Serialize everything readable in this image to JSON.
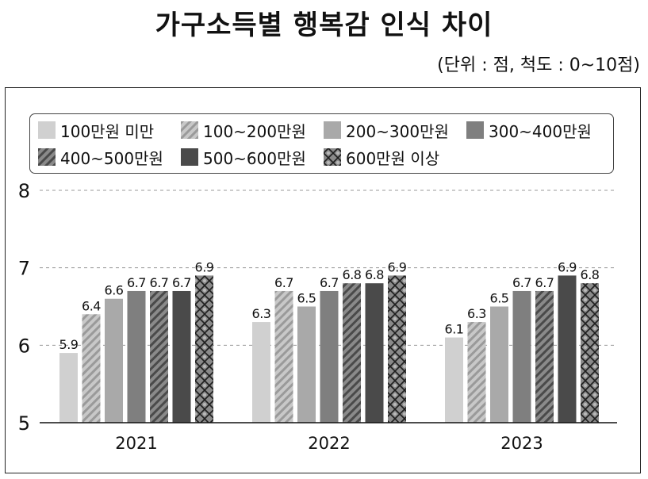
{
  "title": "가구소득별 행복감 인식 차이",
  "unit_note": "(단위 : 점, 척도 : 0~10점)",
  "chart_data": {
    "type": "bar",
    "categories": [
      "2021",
      "2022",
      "2023"
    ],
    "ylim": [
      5,
      8
    ],
    "yticks": [
      "5",
      "6",
      "7",
      "8"
    ],
    "grid": "horizontal dashed",
    "legend_position": "top",
    "series": [
      {
        "name": "100만원 미만",
        "values": [
          5.9,
          6.3,
          6.1
        ],
        "labels": [
          "5.9",
          "6.3",
          "6.1"
        ],
        "fill": "#d0d0d0",
        "pattern": "solid"
      },
      {
        "name": "100~200만원",
        "values": [
          6.4,
          6.7,
          6.3
        ],
        "labels": [
          "6.4",
          "6.7",
          "6.3"
        ],
        "fill": "#b4b4b4",
        "pattern": "stripes"
      },
      {
        "name": "200~300만원",
        "values": [
          6.6,
          6.5,
          6.5
        ],
        "labels": [
          "6.6",
          "6.5",
          "6.5"
        ],
        "fill": "#a9a9a9",
        "pattern": "solid"
      },
      {
        "name": "300~400만원",
        "values": [
          6.7,
          6.7,
          6.7
        ],
        "labels": [
          "6.7",
          "6.7",
          "6.7"
        ],
        "fill": "#7f7f7f",
        "pattern": "solid"
      },
      {
        "name": "400~500만원",
        "values": [
          6.7,
          6.8,
          6.7
        ],
        "labels": [
          "6.7",
          "6.8",
          "6.7"
        ],
        "fill": "#6e6e6e",
        "pattern": "stripes"
      },
      {
        "name": "500~600만원",
        "values": [
          6.7,
          6.8,
          6.9
        ],
        "labels": [
          "6.7",
          "6.8",
          "6.9"
        ],
        "fill": "#4a4a4a",
        "pattern": "solid"
      },
      {
        "name": "600만원 이상",
        "values": [
          6.9,
          6.9,
          6.8
        ],
        "labels": [
          "6.9",
          "6.9",
          "6.8"
        ],
        "fill": "#6a6a6a",
        "pattern": "lattice"
      }
    ]
  }
}
